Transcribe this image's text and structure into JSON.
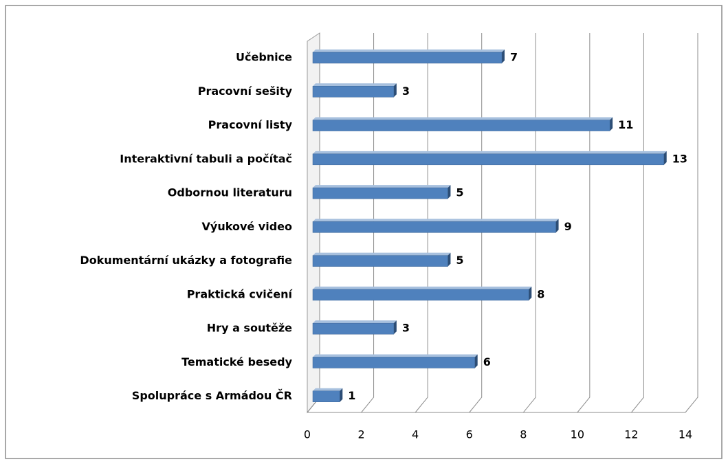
{
  "chart_data": {
    "type": "bar",
    "orientation": "horizontal",
    "categories": [
      "Učebnice",
      "Pracovní sešity",
      "Pracovní listy",
      "Interaktivní tabuli a počítač",
      "Odbornou literaturu",
      "Výukové video",
      "Dokumentární ukázky a fotografie",
      "Praktická cvičení",
      "Hry a soutěže",
      "Tematické besedy",
      "Spolupráce s Armádou ČR"
    ],
    "values": [
      7,
      3,
      11,
      13,
      5,
      9,
      5,
      8,
      3,
      6,
      1
    ],
    "color": "#4f81bd",
    "xlim": [
      0,
      14
    ],
    "xticks": [
      0,
      2,
      4,
      6,
      8,
      10,
      12,
      14
    ],
    "grid": true
  }
}
